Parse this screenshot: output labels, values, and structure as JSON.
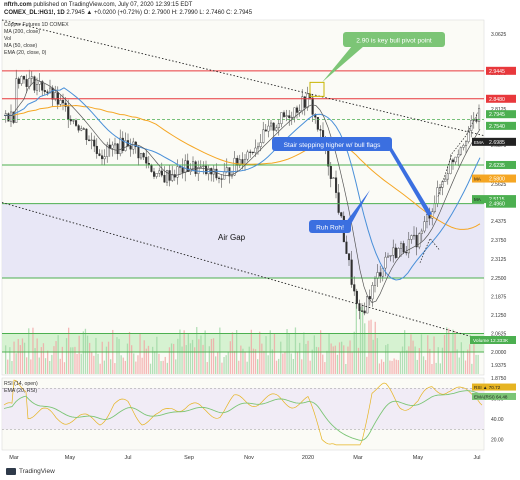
{
  "header": {
    "site": "nftrh.com",
    "published": "published on TradingView.com, July 07, 2020 12:39:15 EDT",
    "symbol": "COMEX_DL:HG1!, 1D",
    "ohlc": "2.7945 ▲ +0.0200 (+0.72%)   O: 2.7900   H: 2.7990   L: 2.7460   C: 2.7945"
  },
  "overlay_legend": [
    "Copper Futures 1D COMEX",
    "MA (200, close)",
    "Vol",
    "MA (50, close)",
    "EMA (20, close, 0)"
  ],
  "annotations": {
    "pivot": "2.90 is key bull pivot point",
    "stairs": "Stair stepping higher w/ bull flags",
    "ruhroh": "Ruh Roh!",
    "airgap": "Air Gap"
  },
  "price_labels": [
    {
      "text": "2.9445",
      "color": "#e8383c",
      "value": 2.9445
    },
    {
      "text": "2.8480",
      "color": "#e8383c",
      "value": 2.848
    },
    {
      "text": "2.7945",
      "color": "#4caf50",
      "value": 2.7945
    },
    {
      "text": "2.7540",
      "color": "#4caf50",
      "value": 2.754
    },
    {
      "text": "2.6985",
      "color": "#222222",
      "value": 2.6985
    },
    {
      "text": "2.6235",
      "color": "#4caf50",
      "value": 2.6235
    },
    {
      "text": "2.5800",
      "color": "#f5a623",
      "value": 2.58
    },
    {
      "text": "2.5115",
      "color": "#4caf50",
      "value": 2.5115
    },
    {
      "text": "2.4960",
      "color": "#4caf50",
      "value": 2.496
    }
  ],
  "price_tag_prefixes": {
    "2.6985": "EMA",
    "2.5800": "MA",
    "2.5115": "MA"
  },
  "price_axis_ticks": [
    "3.0625",
    "2.9375",
    "2.8125",
    "2.6875",
    "2.5625",
    "2.4375",
    "2.3750",
    "2.3125",
    "2.2500",
    "2.1875",
    "2.1250",
    "2.0625",
    "2.0000",
    "1.9375",
    "1.8750"
  ],
  "volume_label": "Volume  12.333K",
  "rsi": {
    "legend_1": "RSI (14, open)",
    "legend_2": "EMA (20, RSI)",
    "tag1": "RSI ▲ 70.72",
    "tag2": "EMA(RSI) 64.48",
    "ticks": [
      "60.00",
      "40.00",
      "20.00"
    ]
  },
  "time_axis": [
    "Mar",
    "May",
    "Jul",
    "Sep",
    "Nov",
    "2020",
    "Mar",
    "May",
    "Jul"
  ],
  "footer": {
    "brand": "TradingView"
  },
  "colors": {
    "red_line": "#e8383c",
    "green_line": "#4caf50",
    "air_gap_fill": "#e4e3f6",
    "volume_band": "#c9efc4",
    "annotation_green": "#7cc576",
    "annotation_blue": "#3b6fe0",
    "ma200": "#f5a623",
    "ma50": "#4a90d9",
    "rsi_line": "#e6b422",
    "rsi_ema": "#7cc576"
  },
  "chart_data": {
    "type": "candlestick",
    "title": "",
    "y_range": [
      1.86,
      3.09
    ],
    "x_categories": [
      "Mar",
      "May",
      "Jul",
      "Sep",
      "Nov",
      "2020",
      "Mar",
      "May",
      "Jul"
    ],
    "price_path": [
      [
        "Mar",
        2.93
      ],
      [
        "Apr",
        2.89
      ],
      [
        "May",
        2.79
      ],
      [
        "Jun",
        2.66
      ],
      [
        "Jul",
        2.7
      ],
      [
        "Aug",
        2.58
      ],
      [
        "Sep",
        2.62
      ],
      [
        "Oct",
        2.58
      ],
      [
        "Nov",
        2.67
      ],
      [
        "Dec",
        2.77
      ],
      [
        "2020",
        2.85
      ],
      [
        "Feb",
        2.57
      ],
      [
        "Mar",
        2.11
      ],
      [
        "Apr",
        2.32
      ],
      [
        "May",
        2.38
      ],
      [
        "Jun",
        2.62
      ],
      [
        "Jul",
        2.79
      ]
    ],
    "horizontal_levels": [
      2.9445,
      2.848,
      2.7945,
      2.6235,
      2.496,
      2.25,
      2.0625,
      2.0
    ],
    "air_gap_range": [
      2.25,
      2.496
    ],
    "rsi_last": 70.72,
    "rsi_ema_last": 64.48
  }
}
